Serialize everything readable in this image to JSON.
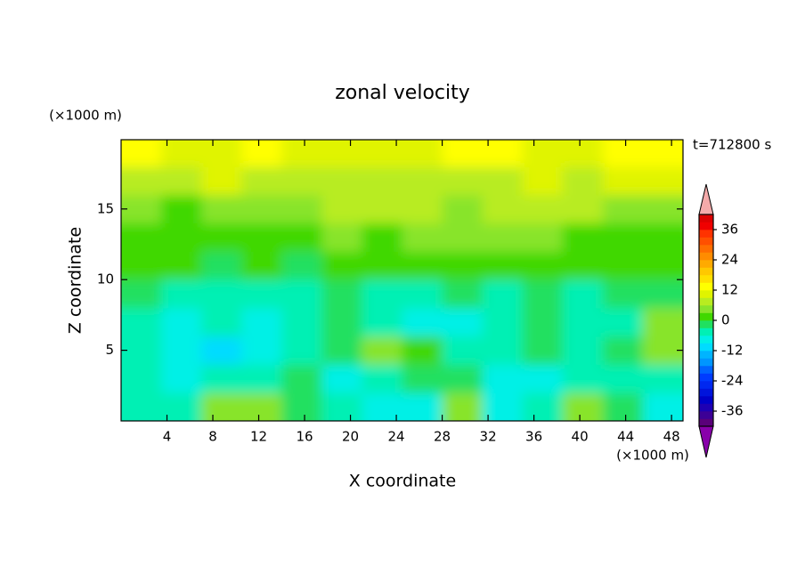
{
  "chart_data": {
    "type": "contour",
    "title": "zonal velocity",
    "xlabel": "X coordinate",
    "ylabel": "Z coordinate",
    "x_unit": "(×1000 m)",
    "y_unit": "(×1000 m)",
    "time_label": "t=712800 s",
    "xlim": [
      0,
      49
    ],
    "xticks": [
      4,
      8,
      12,
      16,
      20,
      24,
      28,
      32,
      36,
      40,
      44,
      48
    ],
    "ylim": [
      0,
      19.9
    ],
    "yticks": [
      5,
      10,
      15
    ],
    "x": [
      1.75,
      5.25,
      8.75,
      12.25,
      15.75,
      19.25,
      22.75,
      26.25,
      29.75,
      33.25,
      36.75,
      40.25,
      43.75,
      47.25
    ],
    "y": [
      1,
      3,
      5,
      7,
      9,
      11,
      13,
      15,
      17,
      19
    ],
    "z": [
      [
        -4,
        -6,
        3,
        4,
        -3,
        -6,
        -8,
        -9,
        5,
        -7,
        -6,
        3,
        -2,
        -9
      ],
      [
        -5,
        -8,
        -6,
        -4,
        -3,
        -7,
        -6,
        -2,
        -3,
        -9,
        -7,
        -4,
        -6,
        -4
      ],
      [
        -4,
        -8,
        -10,
        -9,
        -6,
        -3,
        3,
        2,
        -6,
        -5,
        -2,
        -4,
        -1,
        4
      ],
      [
        -6,
        -7,
        -6,
        -9,
        -5,
        -1,
        -6,
        -8,
        -7,
        -4,
        -3,
        -6,
        -5,
        5
      ],
      [
        -3,
        -4,
        -5,
        -5,
        -4,
        -3,
        -4,
        -5,
        -3,
        -4,
        -3,
        -4,
        -3,
        -2
      ],
      [
        0,
        1,
        -1,
        0,
        -1,
        0,
        1,
        0,
        0,
        1,
        0,
        1,
        0,
        1
      ],
      [
        2,
        1,
        2,
        2,
        1,
        3,
        2,
        3,
        4,
        3,
        3,
        2,
        2,
        2
      ],
      [
        3,
        2,
        4,
        3,
        4,
        6,
        6,
        7,
        5,
        6,
        7,
        6,
        5,
        5
      ],
      [
        7,
        8,
        9,
        8,
        7,
        7,
        8,
        7,
        8,
        8,
        9,
        8,
        9,
        9
      ],
      [
        12,
        11,
        10,
        12,
        10,
        9,
        9,
        10,
        12,
        13,
        11,
        10,
        12,
        14
      ]
    ],
    "clim": [
      -42,
      42
    ],
    "cticks": [
      -36,
      -24,
      -12,
      0,
      12,
      24,
      36
    ],
    "colors": [
      "#5a007a",
      "#3c0096",
      "#1e00b4",
      "#0000c8",
      "#0014dc",
      "#0028f0",
      "#003cff",
      "#0064ff",
      "#0096ff",
      "#00b4ff",
      "#00dcff",
      "#00f0e6",
      "#00f0b4",
      "#20e060",
      "#40d800",
      "#88e42c",
      "#b8ec20",
      "#e0f400",
      "#ffff00",
      "#ffe000",
      "#ffc800",
      "#ffaa00",
      "#ff8c00",
      "#ff6e00",
      "#ff5000",
      "#ff3200",
      "#f00000",
      "#dc0000"
    ],
    "over_color": "#f4aaaa",
    "under_color": "#8800aa"
  }
}
